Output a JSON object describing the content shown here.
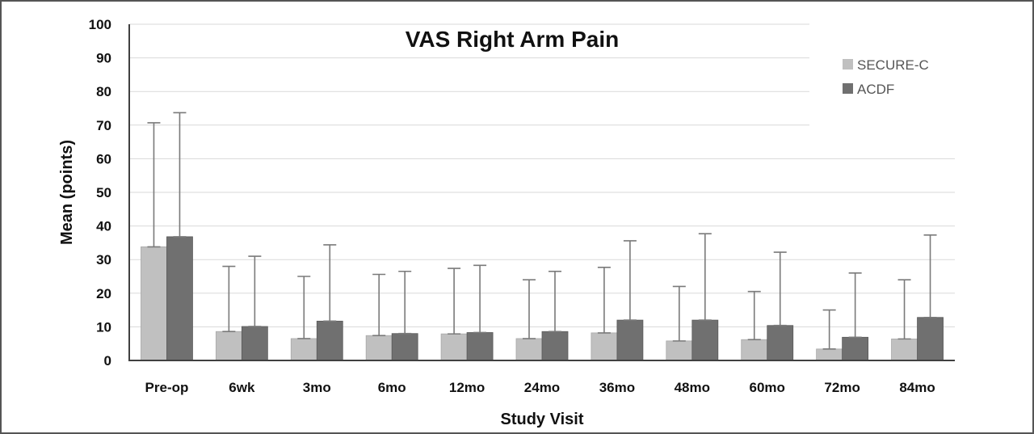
{
  "chart_data": {
    "type": "bar",
    "title": "VAS Right Arm Pain",
    "xlabel": "Study Visit",
    "ylabel": "Mean (points)",
    "ylim": [
      0,
      100
    ],
    "yticks": [
      0,
      10,
      20,
      30,
      40,
      50,
      60,
      70,
      80,
      90,
      100
    ],
    "grid": true,
    "legend_position": "top-right",
    "error_bars": "upper",
    "categories": [
      "Pre-op",
      "6wk",
      "3mo",
      "6mo",
      "12mo",
      "24mo",
      "36mo",
      "48mo",
      "60mo",
      "72mo",
      "84mo"
    ],
    "series": [
      {
        "name": "SECURE-C",
        "color": "#c0c0c0",
        "values": [
          33.8,
          8.6,
          6.5,
          7.4,
          7.9,
          6.5,
          8.2,
          5.8,
          6.2,
          3.4,
          6.4
        ],
        "error_upper": [
          70.7,
          28.0,
          25.0,
          25.6,
          27.4,
          24.0,
          27.7,
          22.0,
          20.5,
          15.0,
          24.0
        ]
      },
      {
        "name": "ACDF",
        "color": "#707070",
        "values": [
          36.8,
          10.1,
          11.7,
          8.0,
          8.3,
          8.6,
          12.0,
          12.0,
          10.4,
          6.9,
          12.8
        ],
        "error_upper": [
          73.7,
          31.0,
          34.4,
          26.5,
          28.3,
          26.5,
          35.6,
          37.7,
          32.2,
          26.0,
          37.3
        ]
      }
    ]
  }
}
